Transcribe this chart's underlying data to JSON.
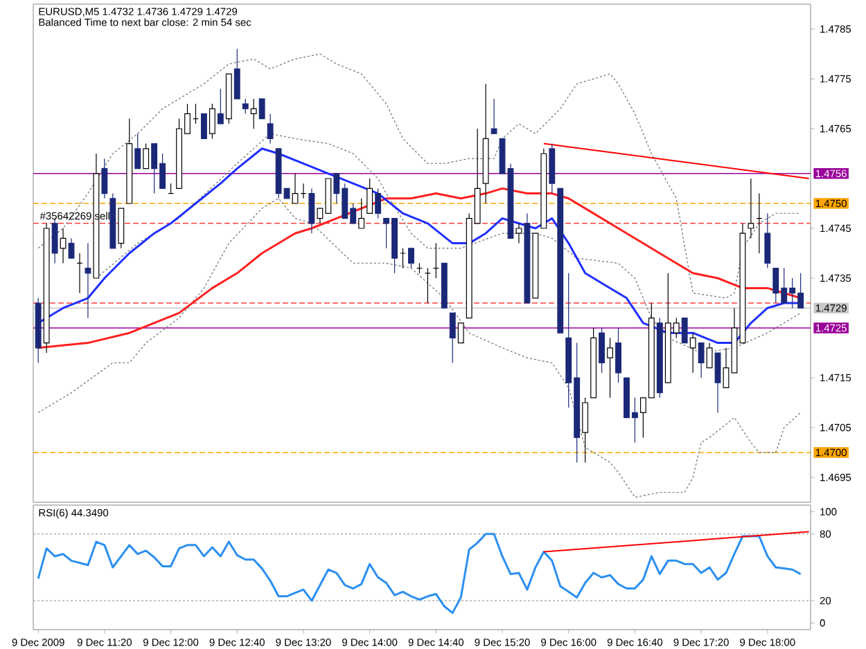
{
  "chart_data": [
    {
      "type": "candlestick",
      "title": "EURUSD,M5  1.4732 1.4736 1.4729 1.4729",
      "subtitle": "Balanced Time to next bar close: 2 min 54 sec",
      "x": [
        "2009-12-09T10:40",
        "2009-12-09T10:45",
        "2009-12-09T10:50",
        "2009-12-09T10:55",
        "2009-12-09T11:00",
        "2009-12-09T11:05",
        "2009-12-09T11:10",
        "2009-12-09T11:15",
        "2009-12-09T11:20",
        "2009-12-09T11:25",
        "2009-12-09T11:30",
        "2009-12-09T11:35",
        "2009-12-09T11:40",
        "2009-12-09T11:45",
        "2009-12-09T11:50",
        "2009-12-09T11:55",
        "2009-12-09T12:00",
        "2009-12-09T12:05",
        "2009-12-09T12:10",
        "2009-12-09T12:15",
        "2009-12-09T12:20",
        "2009-12-09T12:25",
        "2009-12-09T12:30",
        "2009-12-09T12:35",
        "2009-12-09T12:40",
        "2009-12-09T12:45",
        "2009-12-09T12:50",
        "2009-12-09T12:55",
        "2009-12-09T13:00",
        "2009-12-09T13:05",
        "2009-12-09T13:10",
        "2009-12-09T13:15",
        "2009-12-09T13:20",
        "2009-12-09T13:25",
        "2009-12-09T13:30",
        "2009-12-09T13:35",
        "2009-12-09T13:40",
        "2009-12-09T13:45",
        "2009-12-09T13:50",
        "2009-12-09T13:55",
        "2009-12-09T14:00",
        "2009-12-09T14:05",
        "2009-12-09T14:10",
        "2009-12-09T14:15",
        "2009-12-09T14:20",
        "2009-12-09T14:25",
        "2009-12-09T14:30",
        "2009-12-09T14:35",
        "2009-12-09T14:40",
        "2009-12-09T14:45",
        "2009-12-09T14:50",
        "2009-12-09T14:55",
        "2009-12-09T15:00",
        "2009-12-09T15:05",
        "2009-12-09T15:10",
        "2009-12-09T15:15",
        "2009-12-09T15:20",
        "2009-12-09T15:25",
        "2009-12-09T15:30",
        "2009-12-09T15:35",
        "2009-12-09T15:40",
        "2009-12-09T15:45",
        "2009-12-09T15:50",
        "2009-12-09T15:55",
        "2009-12-09T16:00",
        "2009-12-09T16:05",
        "2009-12-09T16:10",
        "2009-12-09T16:15",
        "2009-12-09T16:20",
        "2009-12-09T16:25",
        "2009-12-09T16:30",
        "2009-12-09T16:35",
        "2009-12-09T16:40",
        "2009-12-09T16:45",
        "2009-12-09T16:50",
        "2009-12-09T16:55",
        "2009-12-09T17:00",
        "2009-12-09T17:05",
        "2009-12-09T17:10",
        "2009-12-09T17:15",
        "2009-12-09T17:20",
        "2009-12-09T17:25",
        "2009-12-09T17:30",
        "2009-12-09T17:35",
        "2009-12-09T17:40",
        "2009-12-09T17:45",
        "2009-12-09T17:50",
        "2009-12-09T17:55",
        "2009-12-09T18:00",
        "2009-12-09T18:05",
        "2009-12-09T18:10",
        "2009-12-09T18:15",
        "2009-12-09T18:20"
      ],
      "ohlc": [
        [
          1.473,
          1.4731,
          1.4718,
          1.4721
        ],
        [
          1.4722,
          1.4746,
          1.472,
          1.4745
        ],
        [
          1.4746,
          1.4747,
          1.4738,
          1.474
        ],
        [
          1.4741,
          1.4745,
          1.4738,
          1.4743
        ],
        [
          1.4742,
          1.4743,
          1.4739,
          1.4739
        ],
        [
          1.4738,
          1.474,
          1.4732,
          1.4738
        ],
        [
          1.4737,
          1.4742,
          1.4727,
          1.4736
        ],
        [
          1.4735,
          1.476,
          1.4735,
          1.4756
        ],
        [
          1.4757,
          1.4759,
          1.4751,
          1.4752
        ],
        [
          1.4751,
          1.4752,
          1.4741,
          1.4741
        ],
        [
          1.4742,
          1.4749,
          1.4741,
          1.4749
        ],
        [
          1.475,
          1.4767,
          1.475,
          1.4762
        ],
        [
          1.4761,
          1.4764,
          1.4757,
          1.4757
        ],
        [
          1.4757,
          1.4762,
          1.4757,
          1.4761
        ],
        [
          1.4762,
          1.4762,
          1.4752,
          1.4757
        ],
        [
          1.4758,
          1.476,
          1.4753,
          1.4753
        ],
        [
          1.4752,
          1.4754,
          1.4752,
          1.4752
        ],
        [
          1.4753,
          1.4767,
          1.4753,
          1.4765
        ],
        [
          1.4764,
          1.477,
          1.4764,
          1.4768
        ],
        [
          1.4767,
          1.477,
          1.4766,
          1.4767
        ],
        [
          1.4768,
          1.4768,
          1.4763,
          1.4763
        ],
        [
          1.4764,
          1.477,
          1.4763,
          1.4769
        ],
        [
          1.4768,
          1.4773,
          1.4766,
          1.4766
        ],
        [
          1.4767,
          1.4776,
          1.4766,
          1.4776
        ],
        [
          1.4777,
          1.4781,
          1.4771,
          1.4771
        ],
        [
          1.477,
          1.4771,
          1.4768,
          1.4769
        ],
        [
          1.4768,
          1.4771,
          1.4765,
          1.4769
        ],
        [
          1.4771,
          1.4771,
          1.4767,
          1.4767
        ],
        [
          1.4766,
          1.4768,
          1.4762,
          1.4763
        ],
        [
          1.4761,
          1.4761,
          1.4751,
          1.4752
        ],
        [
          1.4753,
          1.4753,
          1.4751,
          1.4751
        ],
        [
          1.475,
          1.4756,
          1.475,
          1.4752
        ],
        [
          1.4752,
          1.4754,
          1.4751,
          1.4752
        ],
        [
          1.4752,
          1.4753,
          1.4744,
          1.4746
        ],
        [
          1.4747,
          1.4749,
          1.4746,
          1.4749
        ],
        [
          1.4748,
          1.4755,
          1.4748,
          1.4755
        ],
        [
          1.4756,
          1.4756,
          1.475,
          1.4752
        ],
        [
          1.4753,
          1.4754,
          1.4747,
          1.4747
        ],
        [
          1.4749,
          1.475,
          1.4746,
          1.4746
        ],
        [
          1.4745,
          1.4751,
          1.4745,
          1.4747
        ],
        [
          1.4748,
          1.4755,
          1.4748,
          1.4753
        ],
        [
          1.4752,
          1.4753,
          1.4747,
          1.4748
        ],
        [
          1.4747,
          1.4747,
          1.4741,
          1.4746
        ],
        [
          1.4747,
          1.4747,
          1.4736,
          1.4739
        ],
        [
          1.474,
          1.4741,
          1.4737,
          1.474
        ],
        [
          1.4741,
          1.4741,
          1.4737,
          1.4738
        ],
        [
          1.4737,
          1.4738,
          1.4736,
          1.4737
        ],
        [
          1.4736,
          1.4737,
          1.473,
          1.4736
        ],
        [
          1.4737,
          1.4742,
          1.4735,
          1.4737
        ],
        [
          1.4738,
          1.4738,
          1.4729,
          1.4729
        ],
        [
          1.4728,
          1.4728,
          1.4718,
          1.4723
        ],
        [
          1.4722,
          1.4726,
          1.4722,
          1.4726
        ],
        [
          1.4727,
          1.4748,
          1.4727,
          1.4747
        ],
        [
          1.4746,
          1.4765,
          1.4746,
          1.4753
        ],
        [
          1.4754,
          1.4774,
          1.475,
          1.4763
        ],
        [
          1.4765,
          1.4771,
          1.4764,
          1.4764
        ],
        [
          1.4763,
          1.4763,
          1.4756,
          1.4756
        ],
        [
          1.4757,
          1.4758,
          1.4743,
          1.4743
        ],
        [
          1.4744,
          1.4746,
          1.4742,
          1.4745
        ],
        [
          1.4746,
          1.4748,
          1.473,
          1.473
        ],
        [
          1.4731,
          1.4744,
          1.4731,
          1.4744
        ],
        [
          1.4745,
          1.4761,
          1.4745,
          1.476
        ],
        [
          1.4761,
          1.4762,
          1.4752,
          1.4754
        ],
        [
          1.4753,
          1.4753,
          1.4724,
          1.4724
        ],
        [
          1.4723,
          1.4736,
          1.4709,
          1.4714
        ],
        [
          1.4715,
          1.4722,
          1.4698,
          1.4703
        ],
        [
          1.4704,
          1.4711,
          1.4698,
          1.471
        ],
        [
          1.4711,
          1.4725,
          1.4711,
          1.4723
        ],
        [
          1.4724,
          1.4725,
          1.4716,
          1.4718
        ],
        [
          1.4719,
          1.4723,
          1.4711,
          1.4721
        ],
        [
          1.4722,
          1.4725,
          1.4714,
          1.4716
        ],
        [
          1.4715,
          1.4715,
          1.4707,
          1.4707
        ],
        [
          1.4708,
          1.4711,
          1.4702,
          1.4707
        ],
        [
          1.4708,
          1.4711,
          1.4703,
          1.4711
        ],
        [
          1.4711,
          1.473,
          1.4711,
          1.4727
        ],
        [
          1.4726,
          1.4727,
          1.4711,
          1.4712
        ],
        [
          1.4714,
          1.4736,
          1.4714,
          1.4726
        ],
        [
          1.4724,
          1.4727,
          1.4723,
          1.4726
        ],
        [
          1.4727,
          1.4727,
          1.4722,
          1.4722
        ],
        [
          1.4721,
          1.4724,
          1.4716,
          1.4723
        ],
        [
          1.4722,
          1.4722,
          1.4715,
          1.4718
        ],
        [
          1.4717,
          1.4722,
          1.4717,
          1.4721
        ],
        [
          1.472,
          1.472,
          1.4708,
          1.4714
        ],
        [
          1.4713,
          1.4721,
          1.4713,
          1.4717
        ],
        [
          1.4716,
          1.4729,
          1.4716,
          1.4725
        ],
        [
          1.4722,
          1.4746,
          1.4722,
          1.4744
        ],
        [
          1.4745,
          1.4755,
          1.4743,
          1.4746
        ],
        [
          1.4747,
          1.4752,
          1.474,
          1.4747
        ],
        [
          1.4744,
          1.4748,
          1.4737,
          1.4738
        ],
        [
          1.4737,
          1.4737,
          1.473,
          1.4732
        ],
        [
          1.4733,
          1.4737,
          1.473,
          1.473
        ],
        [
          1.4733,
          1.4735,
          1.4729,
          1.4732
        ],
        [
          1.4732,
          1.4736,
          1.4729,
          1.4729
        ]
      ],
      "series": [
        {
          "type": "line",
          "color": "#808080",
          "line_style": "dotted",
          "x": [
            "2009-12-09T10:40",
            "2009-12-09T10:55",
            "2009-12-09T11:10",
            "2009-12-09T11:25",
            "2009-12-09T11:40",
            "2009-12-09T11:55",
            "2009-12-09T12:20",
            "2009-12-09T12:35",
            "2009-12-09T12:50",
            "2009-12-09T13:00",
            "2009-12-09T13:15",
            "2009-12-09T13:30",
            "2009-12-09T13:40",
            "2009-12-09T13:55",
            "2009-12-09T14:10",
            "2009-12-09T14:20",
            "2009-12-09T14:35",
            "2009-12-09T14:45",
            "2009-12-09T15:00",
            "2009-12-09T15:15",
            "2009-12-09T15:20",
            "2009-12-09T15:30",
            "2009-12-09T15:40",
            "2009-12-09T15:55",
            "2009-12-09T16:05",
            "2009-12-09T16:15",
            "2009-12-09T16:25",
            "2009-12-09T16:30",
            "2009-12-09T16:40",
            "2009-12-09T16:50",
            "2009-12-09T17:05",
            "2009-12-09T17:15",
            "2009-12-09T17:35",
            "2009-12-09T17:40",
            "2009-12-09T17:45",
            "2009-12-09T17:55",
            "2009-12-09T18:05",
            "2009-12-09T18:20"
          ],
          "values": [
            1.4741,
            1.4745,
            1.4752,
            1.476,
            1.4764,
            1.4769,
            1.4774,
            1.4778,
            1.4779,
            1.4777,
            1.4779,
            1.478,
            1.4778,
            1.4776,
            1.477,
            1.4763,
            1.4758,
            1.4758,
            1.4759,
            1.4759,
            1.4763,
            1.4766,
            1.4764,
            1.4769,
            1.4774,
            1.4775,
            1.4776,
            1.4774,
            1.4768,
            1.476,
            1.4751,
            1.4732,
            1.4731,
            1.4732,
            1.4741,
            1.4746,
            1.4748,
            1.4748
          ]
        },
        {
          "type": "line",
          "color": "#808080",
          "line_style": "dotted",
          "x": [
            "2009-12-09T11:15",
            "2009-12-09T11:40",
            "2009-12-09T12:05",
            "2009-12-09T12:40",
            "2009-12-09T13:00",
            "2009-12-09T13:15",
            "2009-12-09T13:35",
            "2009-12-09T13:50",
            "2009-12-09T14:05",
            "2009-12-09T14:10",
            "2009-12-09T14:25",
            "2009-12-09T14:35",
            "2009-12-09T14:55",
            "2009-12-09T15:20",
            "2009-12-09T15:40",
            "2009-12-09T15:50",
            "2009-12-09T16:05",
            "2009-12-09T16:30",
            "2009-12-09T16:40",
            "2009-12-09T16:50",
            "2009-12-09T17:00",
            "2009-12-09T17:20",
            "2009-12-09T17:40",
            "2009-12-09T18:00",
            "2009-12-09T18:20"
          ],
          "values": [
            1.4735,
            1.4742,
            1.4747,
            1.4758,
            1.4764,
            1.4763,
            1.4762,
            1.476,
            1.4755,
            1.4752,
            1.4744,
            1.4741,
            1.4741,
            1.4744,
            1.4744,
            1.4743,
            1.4739,
            1.4738,
            1.4735,
            1.4727,
            1.4723,
            1.472,
            1.4721,
            1.4724,
            1.4728
          ]
        },
        {
          "type": "line",
          "color": "#808080",
          "line_style": "dotted",
          "x": [
            "2009-12-09T10:40",
            "2009-12-09T11:00",
            "2009-12-09T11:25",
            "2009-12-09T11:35",
            "2009-12-09T11:45",
            "2009-12-09T12:05",
            "2009-12-09T12:20",
            "2009-12-09T12:35",
            "2009-12-09T12:55",
            "2009-12-09T13:05",
            "2009-12-09T13:15",
            "2009-12-09T13:25",
            "2009-12-09T13:50",
            "2009-12-09T14:10",
            "2009-12-09T14:25",
            "2009-12-09T14:45",
            "2009-12-09T15:00",
            "2009-12-09T15:20",
            "2009-12-09T15:35",
            "2009-12-09T15:50",
            "2009-12-09T16:00",
            "2009-12-09T16:10",
            "2009-12-09T16:25",
            "2009-12-09T16:30",
            "2009-12-09T16:40",
            "2009-12-09T16:55",
            "2009-12-09T17:10",
            "2009-12-09T17:15",
            "2009-12-09T17:20",
            "2009-12-09T17:25",
            "2009-12-09T17:40",
            "2009-12-09T17:50",
            "2009-12-09T17:55",
            "2009-12-09T18:05",
            "2009-12-09T18:10",
            "2009-12-09T18:20"
          ],
          "values": [
            1.4708,
            1.4712,
            1.4718,
            1.4718,
            1.4722,
            1.4727,
            1.4733,
            1.4742,
            1.4749,
            1.4751,
            1.4747,
            1.4746,
            1.4738,
            1.4738,
            1.4737,
            1.4731,
            1.4724,
            1.4721,
            1.4719,
            1.4718,
            1.4713,
            1.4701,
            1.4698,
            1.4696,
            1.4691,
            1.4692,
            1.4692,
            1.4695,
            1.4702,
            1.4703,
            1.4707,
            1.4702,
            1.47,
            1.47,
            1.4705,
            1.4708
          ]
        },
        {
          "type": "line",
          "color": "#ff2020",
          "line_style": "solid",
          "x": [
            "2009-12-09T10:40",
            "2009-12-09T11:10",
            "2009-12-09T11:35",
            "2009-12-09T12:05",
            "2009-12-09T12:25",
            "2009-12-09T12:40",
            "2009-12-09T12:55",
            "2009-12-09T13:15",
            "2009-12-09T13:25",
            "2009-12-09T13:40",
            "2009-12-09T13:55",
            "2009-12-09T14:10",
            "2009-12-09T14:25",
            "2009-12-09T14:40",
            "2009-12-09T14:55",
            "2009-12-09T15:10",
            "2009-12-09T15:20",
            "2009-12-09T15:35",
            "2009-12-09T15:50",
            "2009-12-09T16:00",
            "2009-12-09T16:15",
            "2009-12-09T16:30",
            "2009-12-09T16:45",
            "2009-12-09T17:00",
            "2009-12-09T17:15",
            "2009-12-09T17:30",
            "2009-12-09T17:45",
            "2009-12-09T18:00",
            "2009-12-09T18:20"
          ],
          "values": [
            1.4721,
            1.4722,
            1.4724,
            1.4728,
            1.4733,
            1.4736,
            1.474,
            1.4744,
            1.4745,
            1.4747,
            1.4749,
            1.4751,
            1.4751,
            1.4752,
            1.4751,
            1.4752,
            1.4753,
            1.4752,
            1.4752,
            1.4751,
            1.4748,
            1.4745,
            1.4742,
            1.4739,
            1.4736,
            1.4735,
            1.4733,
            1.4733,
            1.4731
          ]
        },
        {
          "type": "line",
          "color": "#1f2fff",
          "line_style": "solid",
          "x": [
            "2009-12-09T10:40",
            "2009-12-09T10:55",
            "2009-12-09T11:10",
            "2009-12-09T11:20",
            "2009-12-09T11:35",
            "2009-12-09T11:50",
            "2009-12-09T12:00",
            "2009-12-09T12:15",
            "2009-12-09T12:30",
            "2009-12-09T12:40",
            "2009-12-09T12:55",
            "2009-12-09T13:05",
            "2009-12-09T13:20",
            "2009-12-09T13:35",
            "2009-12-09T13:50",
            "2009-12-09T14:05",
            "2009-12-09T14:20",
            "2009-12-09T14:35",
            "2009-12-09T14:50",
            "2009-12-09T15:00",
            "2009-12-09T15:10",
            "2009-12-09T15:20",
            "2009-12-09T15:30",
            "2009-12-09T15:40",
            "2009-12-09T15:50",
            "2009-12-09T16:00",
            "2009-12-09T16:10",
            "2009-12-09T16:20",
            "2009-12-09T16:35",
            "2009-12-09T16:45",
            "2009-12-09T17:00",
            "2009-12-09T17:15",
            "2009-12-09T17:30",
            "2009-12-09T17:40",
            "2009-12-09T17:50",
            "2009-12-09T18:00",
            "2009-12-09T18:10",
            "2009-12-09T18:20"
          ],
          "values": [
            1.4726,
            1.4729,
            1.4731,
            1.4735,
            1.474,
            1.4744,
            1.4746,
            1.475,
            1.4754,
            1.4757,
            1.4761,
            1.476,
            1.4758,
            1.4756,
            1.4754,
            1.4752,
            1.4748,
            1.4746,
            1.4742,
            1.4742,
            1.4744,
            1.4747,
            1.4746,
            1.4745,
            1.4747,
            1.4742,
            1.4736,
            1.4734,
            1.4731,
            1.4726,
            1.4724,
            1.4724,
            1.4722,
            1.4722,
            1.4726,
            1.4729,
            1.473,
            1.473
          ]
        },
        {
          "type": "line",
          "color": "#ff0000",
          "line_style": "solid",
          "x": [
            "2009-12-09T15:45",
            "2009-12-09T18:25"
          ],
          "values": [
            1.4762,
            1.4755
          ]
        }
      ],
      "ref_lines": [
        {
          "axis": "y",
          "value": 1.4756,
          "label": "1.4756",
          "color": "#990099",
          "line_style": "solid"
        },
        {
          "axis": "y",
          "value": 1.475,
          "label": "1.4750",
          "color": "#ffa500",
          "line_style": "dashed"
        },
        {
          "axis": "y",
          "value": 1.4746,
          "color": "#ff4040",
          "line_style": "dashed"
        },
        {
          "axis": "y",
          "value": 1.473,
          "color": "#ff4040",
          "line_style": "dashed"
        },
        {
          "axis": "y",
          "value": 1.4729,
          "label": "1.4729",
          "color": "#c8c8c8",
          "line_style": "solid"
        },
        {
          "axis": "y",
          "value": 1.4725,
          "label": "1.4725",
          "color": "#990099",
          "line_style": "solid"
        },
        {
          "axis": "y",
          "value": 1.47,
          "label": "1.4700",
          "color": "#ffa500",
          "line_style": "dashed"
        }
      ],
      "annotations": [
        {
          "text": "#35642269 sell",
          "x": "2009-12-09T10:40",
          "y": 1.4746
        }
      ],
      "xlim": [
        "2009-12-09T10:37",
        "2009-12-09T18:26"
      ],
      "ylim": [
        1.469,
        1.479
      ],
      "yticks": [
        1.4785,
        1.4775,
        1.4765,
        1.4745,
        1.4735,
        1.4715,
        1.4705,
        1.4695
      ],
      "tick_labels": "y"
    },
    {
      "type": "line",
      "title": "RSI(6) 44.3490",
      "x": [
        "2009-12-09T10:40",
        "2009-12-09T10:45",
        "2009-12-09T10:50",
        "2009-12-09T10:55",
        "2009-12-09T11:00",
        "2009-12-09T11:05",
        "2009-12-09T11:10",
        "2009-12-09T11:15",
        "2009-12-09T11:20",
        "2009-12-09T11:25",
        "2009-12-09T11:30",
        "2009-12-09T11:35",
        "2009-12-09T11:40",
        "2009-12-09T11:45",
        "2009-12-09T11:50",
        "2009-12-09T11:55",
        "2009-12-09T12:00",
        "2009-12-09T12:05",
        "2009-12-09T12:10",
        "2009-12-09T12:15",
        "2009-12-09T12:20",
        "2009-12-09T12:25",
        "2009-12-09T12:30",
        "2009-12-09T12:35",
        "2009-12-09T12:40",
        "2009-12-09T12:45",
        "2009-12-09T12:50",
        "2009-12-09T12:55",
        "2009-12-09T13:00",
        "2009-12-09T13:05",
        "2009-12-09T13:10",
        "2009-12-09T13:15",
        "2009-12-09T13:20",
        "2009-12-09T13:25",
        "2009-12-09T13:30",
        "2009-12-09T13:35",
        "2009-12-09T13:40",
        "2009-12-09T13:45",
        "2009-12-09T13:50",
        "2009-12-09T13:55",
        "2009-12-09T14:00",
        "2009-12-09T14:05",
        "2009-12-09T14:10",
        "2009-12-09T14:15",
        "2009-12-09T14:20",
        "2009-12-09T14:25",
        "2009-12-09T14:30",
        "2009-12-09T14:35",
        "2009-12-09T14:40",
        "2009-12-09T14:45",
        "2009-12-09T14:50",
        "2009-12-09T14:55",
        "2009-12-09T15:00",
        "2009-12-09T15:05",
        "2009-12-09T15:10",
        "2009-12-09T15:15",
        "2009-12-09T15:20",
        "2009-12-09T15:25",
        "2009-12-09T15:30",
        "2009-12-09T15:35",
        "2009-12-09T15:40",
        "2009-12-09T15:45",
        "2009-12-09T15:50",
        "2009-12-09T15:55",
        "2009-12-09T16:00",
        "2009-12-09T16:05",
        "2009-12-09T16:10",
        "2009-12-09T16:15",
        "2009-12-09T16:20",
        "2009-12-09T16:25",
        "2009-12-09T16:30",
        "2009-12-09T16:35",
        "2009-12-09T16:40",
        "2009-12-09T16:45",
        "2009-12-09T16:50",
        "2009-12-09T16:55",
        "2009-12-09T17:00",
        "2009-12-09T17:05",
        "2009-12-09T17:10",
        "2009-12-09T17:15",
        "2009-12-09T17:20",
        "2009-12-09T17:25",
        "2009-12-09T17:30",
        "2009-12-09T17:35",
        "2009-12-09T17:40",
        "2009-12-09T17:45",
        "2009-12-09T17:50",
        "2009-12-09T17:55",
        "2009-12-09T18:00",
        "2009-12-09T18:05",
        "2009-12-09T18:10",
        "2009-12-09T18:15",
        "2009-12-09T18:20"
      ],
      "series": [
        {
          "color": "#2b8ff0",
          "values": [
            40,
            67,
            60,
            62,
            56,
            54,
            52,
            73,
            70,
            50,
            60,
            70,
            62,
            65,
            59,
            51,
            51,
            67,
            70,
            70,
            60,
            68,
            60,
            73,
            61,
            57,
            57,
            49,
            38,
            24,
            24,
            27,
            30,
            20,
            34,
            48,
            45,
            34,
            31,
            35,
            53,
            41,
            36,
            25,
            28,
            24,
            21,
            24,
            26,
            15,
            9,
            23,
            66,
            72,
            80,
            80,
            60,
            44,
            45,
            30,
            50,
            64,
            56,
            33,
            28,
            23,
            36,
            45,
            41,
            43,
            35,
            31,
            31,
            39,
            60,
            44,
            56,
            56,
            53,
            53,
            45,
            50,
            39,
            45,
            62,
            78,
            78,
            78,
            60,
            50,
            49,
            48,
            44
          ]
        },
        {
          "type": "line",
          "color": "#ff0000",
          "x": [
            "2009-12-09T15:45",
            "2009-12-09T18:25"
          ],
          "values": [
            64,
            82
          ]
        }
      ],
      "ref_lines": [
        {
          "axis": "y",
          "value": 80,
          "color": "#b0b0b0",
          "line_style": "dotted"
        },
        {
          "axis": "y",
          "value": 20,
          "color": "#b0b0b0",
          "line_style": "dotted"
        }
      ],
      "xlim": [
        "2009-12-09T10:37",
        "2009-12-09T18:26"
      ],
      "ylim": [
        -6,
        106
      ],
      "yticks": [
        100,
        80,
        20,
        0
      ],
      "xticks": [
        {
          "value": "2009-12-09T10:40",
          "label": "9 Dec 2009"
        },
        {
          "value": "2009-12-09T11:20",
          "label": "9 Dec 11:20"
        },
        {
          "value": "2009-12-09T12:00",
          "label": "9 Dec 12:00"
        },
        {
          "value": "2009-12-09T12:40",
          "label": "9 Dec 12:40"
        },
        {
          "value": "2009-12-09T13:20",
          "label": "9 Dec 13:20"
        },
        {
          "value": "2009-12-09T14:00",
          "label": "9 Dec 14:00"
        },
        {
          "value": "2009-12-09T14:40",
          "label": "9 Dec 14:40"
        },
        {
          "value": "2009-12-09T15:20",
          "label": "9 Dec 15:20"
        },
        {
          "value": "2009-12-09T16:00",
          "label": "9 Dec 16:00"
        },
        {
          "value": "2009-12-09T16:40",
          "label": "9 Dec 16:40"
        },
        {
          "value": "2009-12-09T17:20",
          "label": "9 Dec 17:20"
        },
        {
          "value": "2009-12-09T18:00",
          "label": "9 Dec 18:00"
        }
      ]
    }
  ]
}
